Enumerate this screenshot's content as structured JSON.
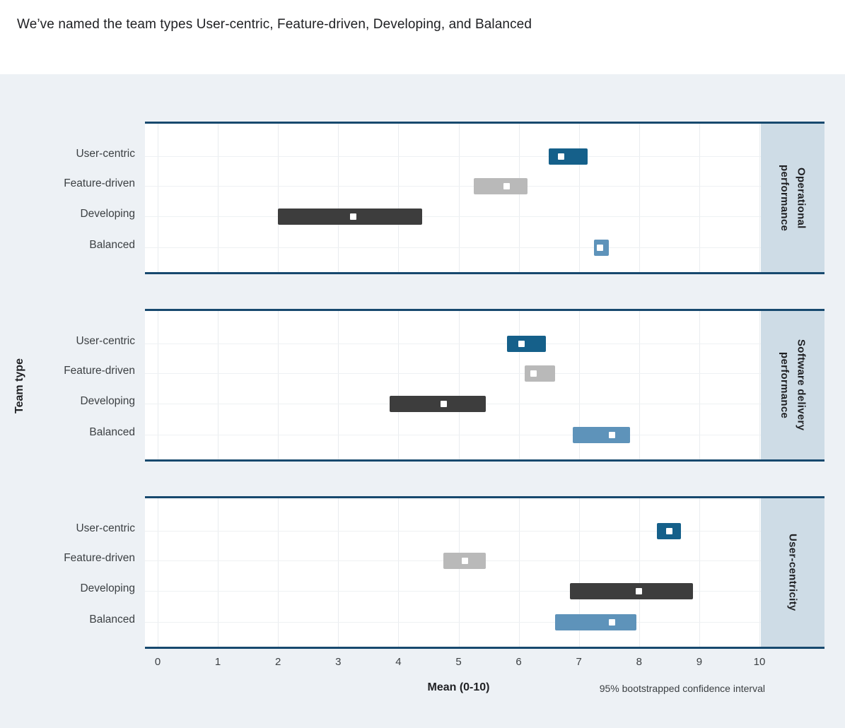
{
  "header": {
    "title": "We’ve named the team types User-centric, Feature-driven, Developing, and Balanced"
  },
  "chart_data": {
    "type": "interval_bar",
    "xlabel": "Mean (0-10)",
    "ylabel": "Team type",
    "note": "95% bootstrapped confidence interval",
    "xlim": [
      0,
      10
    ],
    "x_ticks": [
      0,
      1,
      2,
      3,
      4,
      5,
      6,
      7,
      8,
      9,
      10
    ],
    "grid": true,
    "legend_position": "none",
    "categories": [
      "User-centric",
      "Feature-driven",
      "Developing",
      "Balanced"
    ],
    "colors": {
      "User-centric": "#15608a",
      "Feature-driven": "#b9b9b9",
      "Developing": "#3d3d3d",
      "Balanced": "#5e93ba"
    },
    "panel_border_color": "#17496e",
    "strip_bg": "#cedce6",
    "panels": [
      {
        "facet": "Operational performance",
        "facet_lines": [
          "Operational",
          "performance"
        ],
        "rows": [
          {
            "team": "User-centric",
            "mean": 6.7,
            "ci_low": 6.5,
            "ci_high": 7.15
          },
          {
            "team": "Feature-driven",
            "mean": 5.8,
            "ci_low": 5.25,
            "ci_high": 6.15
          },
          {
            "team": "Developing",
            "mean": 3.25,
            "ci_low": 2.0,
            "ci_high": 4.4
          },
          {
            "team": "Balanced",
            "mean": 7.35,
            "ci_low": 7.25,
            "ci_high": 7.5
          }
        ]
      },
      {
        "facet": "Software delivery performance",
        "facet_lines": [
          "Software delivery",
          "performance"
        ],
        "rows": [
          {
            "team": "User-centric",
            "mean": 6.05,
            "ci_low": 5.8,
            "ci_high": 6.45
          },
          {
            "team": "Feature-driven",
            "mean": 6.25,
            "ci_low": 6.1,
            "ci_high": 6.6
          },
          {
            "team": "Developing",
            "mean": 4.75,
            "ci_low": 3.85,
            "ci_high": 5.45
          },
          {
            "team": "Balanced",
            "mean": 7.55,
            "ci_low": 6.9,
            "ci_high": 7.85
          }
        ]
      },
      {
        "facet": "User-centricity",
        "facet_lines": [
          "User-centricity"
        ],
        "rows": [
          {
            "team": "User-centric",
            "mean": 8.5,
            "ci_low": 8.3,
            "ci_high": 8.7
          },
          {
            "team": "Feature-driven",
            "mean": 5.1,
            "ci_low": 4.75,
            "ci_high": 5.45
          },
          {
            "team": "Developing",
            "mean": 8.0,
            "ci_low": 6.85,
            "ci_high": 8.9
          },
          {
            "team": "Balanced",
            "mean": 7.55,
            "ci_low": 6.6,
            "ci_high": 7.95
          }
        ]
      }
    ]
  }
}
